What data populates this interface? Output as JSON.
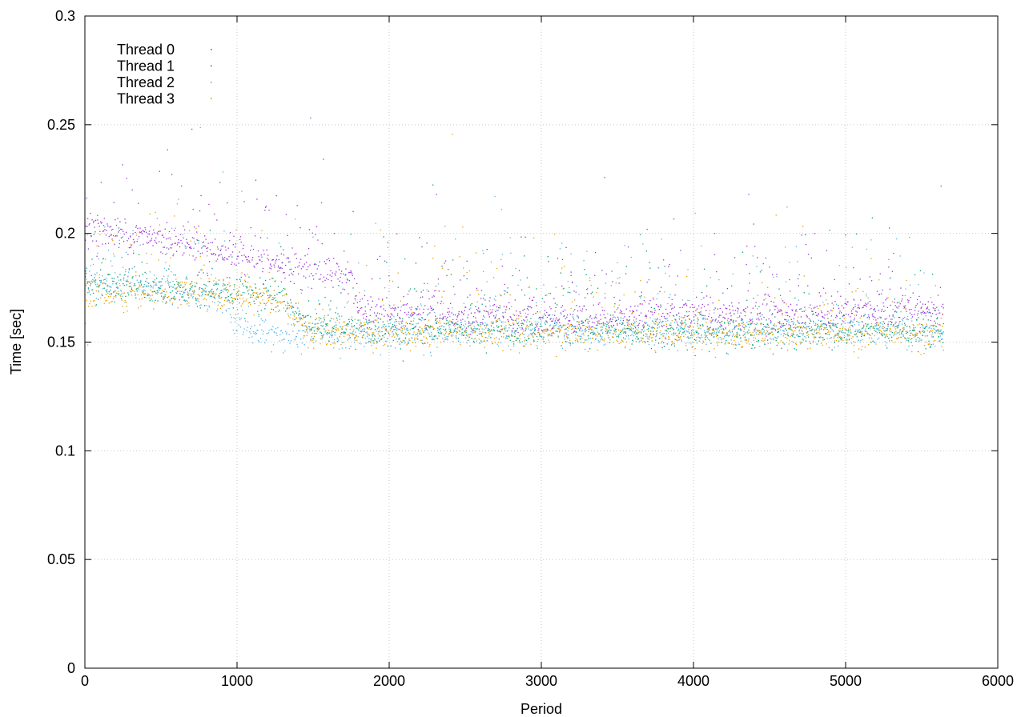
{
  "chart_data": {
    "type": "scatter",
    "title": "",
    "xlabel": "Period",
    "ylabel": "Time [sec]",
    "xlim": [
      0,
      6000
    ],
    "ylim": [
      0,
      0.3
    ],
    "xticks": [
      "0",
      "1000",
      "2000",
      "3000",
      "4000",
      "5000",
      "6000"
    ],
    "yticks": [
      "0",
      "0.05",
      "0.1",
      "0.15",
      "0.2",
      "0.25",
      "0.3"
    ],
    "grid": true,
    "legend_position": "top-left",
    "x_max_point": 5640,
    "series": [
      {
        "name": "Thread 0",
        "color": "#9b30d9",
        "profile": [
          [
            0,
            0.202
          ],
          [
            500,
            0.198
          ],
          [
            900,
            0.192
          ],
          [
            1300,
            0.185
          ],
          [
            1750,
            0.181
          ],
          [
            1800,
            0.163
          ],
          [
            3000,
            0.161
          ],
          [
            4500,
            0.163
          ],
          [
            5640,
            0.165
          ]
        ]
      },
      {
        "name": "Thread 1",
        "color": "#009e73",
        "profile": [
          [
            0,
            0.177
          ],
          [
            500,
            0.174
          ],
          [
            900,
            0.174
          ],
          [
            1300,
            0.171
          ],
          [
            1500,
            0.156
          ],
          [
            3000,
            0.155
          ],
          [
            4500,
            0.155
          ],
          [
            5640,
            0.155
          ]
        ]
      },
      {
        "name": "Thread 2",
        "color": "#56b4e9",
        "profile": [
          [
            0,
            0.177
          ],
          [
            500,
            0.174
          ],
          [
            900,
            0.172
          ],
          [
            1000,
            0.157
          ],
          [
            1300,
            0.153
          ],
          [
            3000,
            0.155
          ],
          [
            4500,
            0.155
          ],
          [
            5640,
            0.155
          ]
        ]
      },
      {
        "name": "Thread 3",
        "color": "#e69f00",
        "profile": [
          [
            0,
            0.172
          ],
          [
            500,
            0.172
          ],
          [
            900,
            0.172
          ],
          [
            1300,
            0.17
          ],
          [
            1450,
            0.155
          ],
          [
            3000,
            0.154
          ],
          [
            4500,
            0.154
          ],
          [
            5640,
            0.154
          ]
        ]
      }
    ]
  }
}
